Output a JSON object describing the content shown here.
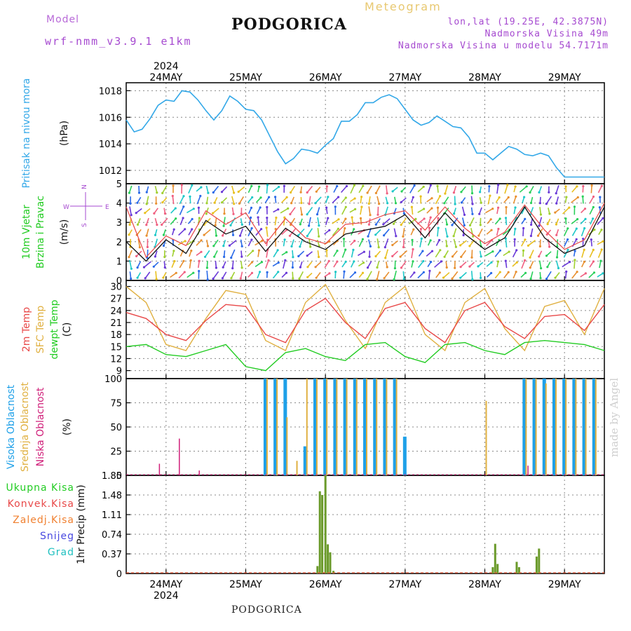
{
  "header": {
    "model_label": "Model",
    "model_name": "wrf-nmm_v3.9.1 e1km",
    "city": "PODGORICA",
    "chart_kind": "Meteogram",
    "coords": "lon,lat (19.25E, 42.3875N)",
    "elevation": "Nadmorska Visina 49m",
    "model_elevation": "Nadmorska Visina u modelu 54.7171m"
  },
  "footer": {
    "city": "PODGORICA",
    "credit": "made by Angel"
  },
  "axis_days": {
    "year": "2024",
    "labels": [
      "24MAY",
      "25MAY",
      "26MAY",
      "27MAY",
      "28MAY",
      "29MAY"
    ]
  },
  "colors": {
    "pressure": "#33a8e8",
    "high_cloud": "#1ea0e8",
    "mid_cloud": "#e0b040",
    "low_cloud": "#d0207a",
    "temp2m": "#e84848",
    "sfc_temp": "#e0b040",
    "dewpt": "#22cc22",
    "total_precip": "#6a9a2a",
    "conv_precip": "#e05030",
    "grid": "#888888",
    "label_purple": "#a64ad0"
  },
  "chart_data": [
    {
      "type": "line",
      "panel": "pressure",
      "ylabel": "Pritisak na nivou mora",
      "unit": "(hPa)",
      "ylim": [
        1011,
        1018.6
      ],
      "yticks": [
        1012,
        1014,
        1016,
        1018
      ],
      "x_days": [
        0.0,
        0.1,
        0.2,
        0.3,
        0.4,
        0.5,
        0.6,
        0.7,
        0.8,
        0.9,
        1.0,
        1.1,
        1.2,
        1.3,
        1.4,
        1.5,
        1.6,
        1.7,
        1.8,
        1.9,
        2.0,
        2.1,
        2.2,
        2.3,
        2.4,
        2.5,
        2.6,
        2.7,
        2.8,
        2.9,
        3.0,
        3.1,
        3.2,
        3.3,
        3.4,
        3.5,
        3.6,
        3.7,
        3.8,
        3.9,
        4.0,
        4.1,
        4.2,
        4.3,
        4.4,
        4.5,
        4.6,
        4.7,
        4.8,
        4.9,
        5.0,
        5.1,
        5.2,
        5.3,
        5.4,
        5.5,
        5.6,
        5.7,
        5.8,
        5.9,
        6.0
      ],
      "series": [
        {
          "values": [
            1015.8,
            1014.9,
            1015.1,
            1015.9,
            1016.9,
            1017.3,
            1017.2,
            1018.0,
            1017.9,
            1017.3,
            1016.5,
            1015.8,
            1016.5,
            1017.6,
            1017.2,
            1016.6,
            1016.5,
            1015.8,
            1014.6,
            1013.4,
            1012.5,
            1012.9,
            1013.6,
            1013.5,
            1013.3,
            1013.9,
            1014.4,
            1015.7,
            1015.7,
            1016.2,
            1017.1,
            1017.1,
            1017.5,
            1017.7,
            1017.4,
            1016.6,
            1015.8,
            1015.4,
            1015.6,
            1016.1,
            1015.7,
            1015.3,
            1015.2,
            1014.5,
            1013.3,
            1013.3,
            1012.8,
            1013.3,
            1013.8,
            1013.6,
            1013.2,
            1013.1,
            1013.3,
            1013.1,
            1012.2,
            1011.5,
            1011.5,
            1011.5,
            1011.5,
            1011.5,
            1011.5
          ]
        }
      ]
    },
    {
      "type": "line",
      "panel": "wind",
      "ylabel": "10m Vjetar",
      "ylabel2": "Brzina i Pravac",
      "unit": "(m/s)",
      "compass": {
        "n": "N",
        "s": "S",
        "e": "E",
        "w": "W"
      },
      "ylim": [
        0,
        5
      ],
      "yticks": [
        0,
        1,
        2,
        3,
        4,
        5
      ],
      "x_days": [
        0.0,
        0.25,
        0.5,
        0.75,
        1.0,
        1.25,
        1.5,
        1.75,
        2.0,
        2.25,
        2.5,
        2.75,
        3.0,
        3.25,
        3.5,
        3.75,
        4.0,
        4.25,
        4.5,
        4.75,
        5.0,
        5.25,
        5.5,
        5.75,
        6.0
      ],
      "series": [
        {
          "name": "speed",
          "values": [
            2.0,
            1.0,
            2.1,
            1.4,
            3.1,
            2.4,
            2.8,
            1.5,
            2.7,
            2.0,
            1.6,
            2.4,
            2.6,
            2.8,
            3.4,
            2.2,
            3.5,
            2.4,
            1.6,
            2.2,
            3.8,
            2.2,
            1.4,
            1.8,
            3.8
          ]
        },
        {
          "name": "gust",
          "values": [
            3.8,
            1.2,
            2.3,
            1.8,
            3.6,
            2.9,
            3.5,
            1.9,
            3.2,
            2.2,
            1.9,
            2.9,
            3.0,
            3.4,
            3.6,
            2.6,
            3.8,
            2.7,
            1.9,
            2.5,
            3.9,
            2.6,
            1.6,
            2.1,
            4.0
          ]
        }
      ]
    },
    {
      "type": "line",
      "panel": "temperature",
      "ylabel": "2m Temp",
      "ylabel2": "SFC Temp",
      "ylabel3": "dewpt Temp",
      "unit": "(C)",
      "ylim": [
        7,
        31.5
      ],
      "yticks": [
        9,
        12,
        15,
        18,
        21,
        24,
        27,
        30
      ],
      "x_days": [
        0.0,
        0.25,
        0.5,
        0.75,
        1.0,
        1.25,
        1.5,
        1.75,
        2.0,
        2.25,
        2.5,
        2.75,
        3.0,
        3.25,
        3.5,
        3.75,
        4.0,
        4.25,
        4.5,
        4.75,
        5.0,
        5.25,
        5.5,
        5.75,
        6.0
      ],
      "series": [
        {
          "name": "2m",
          "values": [
            23.5,
            22.0,
            18.0,
            16.5,
            21.5,
            25.5,
            25.0,
            18.0,
            16.0,
            24.0,
            27.0,
            21.0,
            17.0,
            24.5,
            26.0,
            19.5,
            16.0,
            24.0,
            26.0,
            20.0,
            17.0,
            22.5,
            23.0,
            19.0,
            25.5
          ]
        },
        {
          "name": "sfc",
          "values": [
            30.0,
            26.0,
            15.5,
            14.0,
            22.0,
            29.0,
            28.0,
            16.5,
            14.0,
            26.0,
            30.5,
            21.5,
            14.5,
            26.0,
            30.0,
            18.0,
            14.0,
            26.0,
            29.5,
            19.5,
            14.0,
            25.0,
            26.5,
            18.0,
            29.5
          ]
        },
        {
          "name": "dewpt",
          "values": [
            15.0,
            15.5,
            13.0,
            12.5,
            14.0,
            15.5,
            10.0,
            9.0,
            13.5,
            14.5,
            12.5,
            11.5,
            15.5,
            16.0,
            12.5,
            11.0,
            15.5,
            16.0,
            14.0,
            13.0,
            16.0,
            16.5,
            16.0,
            15.5,
            14.0
          ]
        }
      ]
    },
    {
      "type": "bar",
      "panel": "cloud",
      "ylabel": "Visoka Oblacnost",
      "ylabel2": "Srednja Oblacnost",
      "ylabel3": "Niska Oblacnost",
      "unit": "(%)",
      "ylim": [
        0,
        100
      ],
      "yticks": [
        0,
        25,
        50,
        75,
        100
      ],
      "x_days": [
        0.25,
        0.375,
        0.5,
        0.625,
        0.75,
        0.875,
        1.0,
        1.125,
        1.25,
        1.375,
        1.5,
        1.625,
        1.75,
        1.875,
        2.0,
        2.125,
        2.25,
        2.375,
        2.5,
        2.625,
        2.75,
        2.875,
        3.0,
        3.125,
        3.25,
        3.375,
        3.5,
        3.625,
        3.75,
        3.875,
        4.0,
        4.125,
        4.25,
        4.375,
        4.5,
        4.625,
        4.75,
        4.875,
        5.0,
        5.125,
        5.25,
        5.375,
        5.5,
        5.625,
        5.75,
        5.875
      ],
      "series": [
        {
          "name": "high",
          "values": [
            0,
            0,
            0,
            0,
            0,
            0,
            0,
            0,
            0,
            0,
            0,
            0,
            100,
            100,
            100,
            0,
            30,
            100,
            100,
            100,
            100,
            100,
            100,
            100,
            100,
            100,
            40,
            0,
            0,
            0,
            0,
            0,
            0,
            0,
            0,
            0,
            0,
            0,
            100,
            100,
            100,
            100,
            100,
            100,
            100,
            100
          ]
        },
        {
          "name": "mid",
          "values": [
            0,
            0,
            0,
            0,
            0,
            0,
            0,
            0,
            0,
            0,
            0,
            0,
            100,
            100,
            60,
            15,
            100,
            100,
            100,
            100,
            100,
            100,
            100,
            100,
            100,
            100,
            0,
            0,
            0,
            0,
            0,
            0,
            0,
            0,
            77,
            0,
            0,
            0,
            100,
            100,
            95,
            100,
            100,
            100,
            100,
            100
          ]
        },
        {
          "name": "low",
          "values": [
            0,
            12,
            0,
            38,
            0,
            5,
            0,
            0,
            0,
            0,
            0,
            0,
            0,
            0,
            0,
            0,
            0,
            0,
            0,
            0,
            0,
            0,
            0,
            0,
            0,
            0,
            0,
            0,
            0,
            0,
            0,
            0,
            0,
            0,
            0,
            0,
            0,
            0,
            10,
            0,
            0,
            0,
            0,
            0,
            0,
            0
          ]
        }
      ]
    },
    {
      "type": "bar",
      "panel": "precip",
      "legend": [
        "Ukupna Kisa",
        "Konvek.Kisa",
        "Zaledj.Kisa",
        "Snijeg",
        "Grad"
      ],
      "ylabel": "1hr Precip (mm)",
      "ylim": [
        0,
        1.85
      ],
      "yticks": [
        0,
        0.37,
        0.74,
        1.11,
        1.48,
        1.85
      ],
      "x_days": [
        2.4,
        2.43,
        2.46,
        2.5,
        2.53,
        2.56,
        2.6,
        2.63,
        4.6,
        4.63,
        4.66,
        4.9,
        4.93,
        5.15,
        5.18
      ],
      "series": [
        {
          "name": "total",
          "values": [
            0.14,
            1.55,
            1.48,
            1.85,
            0.55,
            0.4,
            0.05,
            0.0,
            0.12,
            0.56,
            0.18,
            0.22,
            0.12,
            0.32,
            0.47
          ]
        }
      ]
    }
  ]
}
